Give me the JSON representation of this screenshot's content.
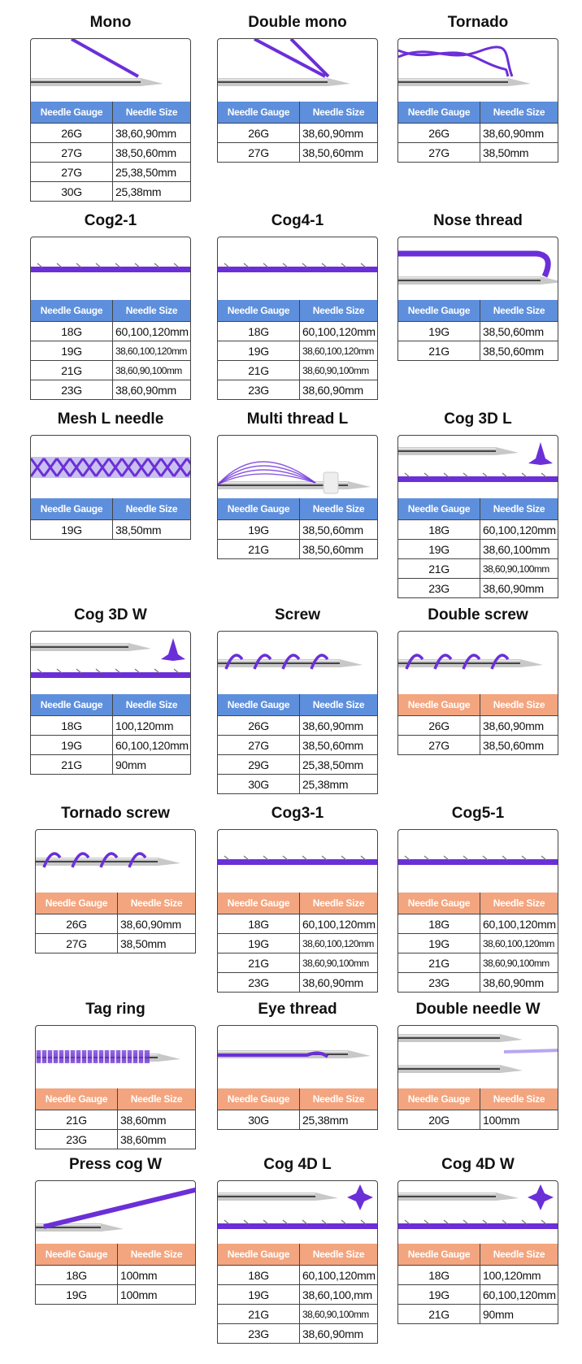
{
  "header_labels": {
    "gauge": "Needle Gauge",
    "size": "Needle Size"
  },
  "colors": {
    "blue_header": "#5e8fdc",
    "orange_header": "#f3a57f",
    "thread": "#6b2fd8"
  },
  "products": [
    {
      "name": "Mono",
      "illustration": "mono-needle",
      "header": "blue",
      "rows": [
        [
          "26G",
          "38,60,90mm"
        ],
        [
          "27G",
          "38,50,60mm"
        ],
        [
          "27G",
          "25,38,50mm"
        ],
        [
          "30G",
          "25,38mm"
        ]
      ]
    },
    {
      "name": "Double mono",
      "illustration": "double-mono-needle",
      "header": "blue",
      "rows": [
        [
          "26G",
          "38,60,90mm"
        ],
        [
          "27G",
          "38,50,60mm"
        ]
      ]
    },
    {
      "name": "Tornado",
      "illustration": "tornado-needle",
      "header": "blue",
      "rows": [
        [
          "26G",
          "38,60,90mm"
        ],
        [
          "27G",
          "38,50mm"
        ]
      ]
    },
    {
      "name": "Cog2-1",
      "illustration": "cog-thread",
      "header": "blue",
      "rows": [
        [
          "18G",
          "60,100,120mm"
        ],
        [
          "19G",
          "38,60,100,120mm"
        ],
        [
          "21G",
          "38,60,90,100mm"
        ],
        [
          "23G",
          "38,60,90mm"
        ]
      ]
    },
    {
      "name": "Cog4-1",
      "illustration": "cog-thread",
      "header": "blue",
      "rows": [
        [
          "18G",
          "60,100,120mm"
        ],
        [
          "19G",
          "38,60,100,120mm"
        ],
        [
          "21G",
          "38,60,90,100mm"
        ],
        [
          "23G",
          "38,60,90mm"
        ]
      ]
    },
    {
      "name": "Nose thread",
      "illustration": "nose-thread",
      "header": "blue",
      "rows": [
        [
          "19G",
          "38,50,60mm"
        ],
        [
          "21G",
          "38,50,60mm"
        ]
      ]
    },
    {
      "name": "Mesh L needle",
      "illustration": "mesh-thread",
      "header": "blue",
      "rows": [
        [
          "19G",
          "38,50mm"
        ]
      ]
    },
    {
      "name": "Multi thread L",
      "illustration": "multi-thread",
      "header": "blue",
      "rows": [
        [
          "19G",
          "38,50,60mm"
        ],
        [
          "21G",
          "38,50,60mm"
        ]
      ]
    },
    {
      "name": "Cog 3D L",
      "illustration": "cog-3d",
      "header": "blue",
      "rows": [
        [
          "18G",
          "60,100,120mm"
        ],
        [
          "19G",
          "38,60,100mm"
        ],
        [
          "21G",
          "38,60,90,100mm"
        ],
        [
          "23G",
          "38,60,90mm"
        ]
      ]
    },
    {
      "name": "Cog 3D W",
      "illustration": "cog-3d",
      "header": "blue",
      "rows": [
        [
          "18G",
          "100,120mm"
        ],
        [
          "19G",
          "60,100,120mm"
        ],
        [
          "21G",
          "90mm"
        ]
      ]
    },
    {
      "name": "Screw",
      "illustration": "screw-needle",
      "header": "blue",
      "rows": [
        [
          "26G",
          "38,60,90mm"
        ],
        [
          "27G",
          "38,50,60mm"
        ],
        [
          "29G",
          "25,38,50mm"
        ],
        [
          "30G",
          "25,38mm"
        ]
      ]
    },
    {
      "name": "Double screw",
      "illustration": "screw-needle",
      "header": "orange",
      "rows": [
        [
          "26G",
          "38,60,90mm"
        ],
        [
          "27G",
          "38,50,60mm"
        ]
      ]
    },
    {
      "name": "Tornado screw",
      "illustration": "screw-needle",
      "header": "orange",
      "rows": [
        [
          "26G",
          "38,60,90mm"
        ],
        [
          "27G",
          "38,50mm"
        ]
      ]
    },
    {
      "name": "Cog3-1",
      "illustration": "cog-thread",
      "header": "orange",
      "rows": [
        [
          "18G",
          "60,100,120mm"
        ],
        [
          "19G",
          "38,60,100,120mm"
        ],
        [
          "21G",
          "38,60,90,100mm"
        ],
        [
          "23G",
          "38,60,90mm"
        ]
      ]
    },
    {
      "name": "Cog5-1",
      "illustration": "cog-thread",
      "header": "orange",
      "rows": [
        [
          "18G",
          "60,100,120mm"
        ],
        [
          "19G",
          "38,60,100,120mm"
        ],
        [
          "21G",
          "38,60,90,100mm"
        ],
        [
          "23G",
          "38,60,90mm"
        ]
      ]
    },
    {
      "name": "Tag ring",
      "illustration": "tag-ring",
      "header": "orange",
      "rows": [
        [
          "21G",
          "38,60mm"
        ],
        [
          "23G",
          "38,60mm"
        ]
      ]
    },
    {
      "name": "Eye thread",
      "illustration": "eye-thread",
      "header": "orange",
      "rows": [
        [
          "30G",
          "25,38mm"
        ]
      ]
    },
    {
      "name": "Double needle W",
      "illustration": "double-needle",
      "header": "orange",
      "rows": [
        [
          "20G",
          "100mm"
        ]
      ]
    },
    {
      "name": "Press cog W",
      "illustration": "press-cog",
      "header": "orange",
      "rows": [
        [
          "18G",
          "100mm"
        ],
        [
          "19G",
          "100mm"
        ]
      ]
    },
    {
      "name": "Cog 4D L",
      "illustration": "cog-4d",
      "header": "orange",
      "rows": [
        [
          "18G",
          "60,100,120mm"
        ],
        [
          "19G",
          "38,60,100,mm"
        ],
        [
          "21G",
          "38,60,90,100mm"
        ],
        [
          "23G",
          "38,60,90mm"
        ]
      ]
    },
    {
      "name": "Cog 4D W",
      "illustration": "cog-4d",
      "header": "orange",
      "rows": [
        [
          "18G",
          "100,120mm"
        ],
        [
          "19G",
          "60,100,120mm"
        ],
        [
          "21G",
          "90mm"
        ]
      ]
    }
  ]
}
